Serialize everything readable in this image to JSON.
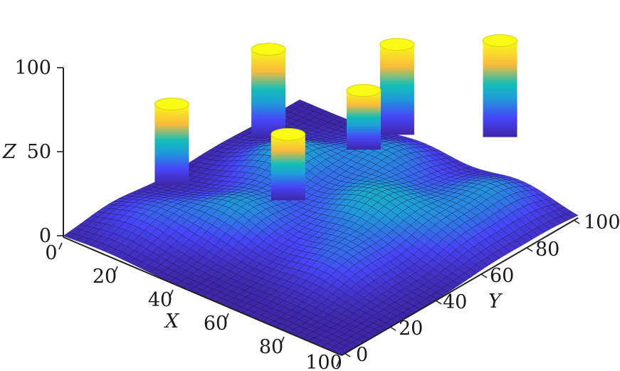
{
  "chart_data": {
    "type": "surface3d",
    "title": "",
    "xlabel": "X",
    "ylabel": "Y",
    "zlabel": "Z",
    "xlim": [
      0,
      100
    ],
    "ylim": [
      0,
      100
    ],
    "zlim": [
      0,
      100
    ],
    "x_ticks": [
      "0",
      "20",
      "40",
      "60",
      "80",
      "100"
    ],
    "y_ticks": [
      "0",
      "20",
      "40",
      "60",
      "80",
      "100"
    ],
    "z_ticks": [
      "0",
      "50",
      "100"
    ],
    "colormap": [
      "#3e26a8",
      "#4745f8",
      "#1e9cd9",
      "#13beb7",
      "#7dc850",
      "#f8ba3d",
      "#f9fb15"
    ],
    "hills": [
      {
        "x": 15,
        "y": 20,
        "z": 20
      },
      {
        "x": 35,
        "y": 35,
        "z": 30
      },
      {
        "x": 25,
        "y": 65,
        "z": 35
      },
      {
        "x": 70,
        "y": 35,
        "z": 22
      },
      {
        "x": 60,
        "y": 60,
        "z": 35
      },
      {
        "x": 45,
        "y": 85,
        "z": 28
      },
      {
        "x": 80,
        "y": 88,
        "z": 28
      },
      {
        "x": 82,
        "y": 65,
        "z": 20
      }
    ],
    "columns": [
      {
        "x": 5,
        "y": 40,
        "z": 100
      },
      {
        "x": 10,
        "y": 75,
        "z": 115
      },
      {
        "x": 40,
        "y": 48,
        "z": 100
      },
      {
        "x": 40,
        "y": 80,
        "z": 100
      },
      {
        "x": 35,
        "y": 100,
        "z": 115
      },
      {
        "x": 55,
        "y": 120,
        "z": 115
      }
    ]
  }
}
